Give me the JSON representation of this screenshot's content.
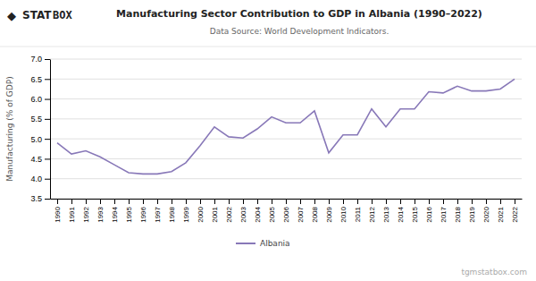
{
  "chart_data": {
    "type": "line",
    "title": "Manufacturing Sector Contribution to GDP in Albania (1990–2022)",
    "subtitle": "Data Source: World Development Indicators.",
    "y_label": "Manufacturing (% of GDP)",
    "annotations": [
      "◆",
      "STAT",
      "BOX",
      "tgmstatbox.com"
    ],
    "x": [
      1990,
      1991,
      1992,
      1993,
      1994,
      1995,
      1996,
      1997,
      1998,
      1999,
      2000,
      2001,
      2002,
      2003,
      2004,
      2005,
      2006,
      2007,
      2008,
      2009,
      2010,
      2011,
      2012,
      2013,
      2014,
      2015,
      2016,
      2017,
      2018,
      2019,
      2020,
      2021,
      2022
    ],
    "series": [
      {
        "name": "Albania",
        "color": "#8878b8",
        "values": [
          4.9,
          4.62,
          4.7,
          4.55,
          4.35,
          4.15,
          4.12,
          4.12,
          4.18,
          4.4,
          4.83,
          5.3,
          5.05,
          5.02,
          5.25,
          5.55,
          5.4,
          5.4,
          5.7,
          4.65,
          5.1,
          5.1,
          5.75,
          5.3,
          5.75,
          5.75,
          6.18,
          6.15,
          6.32,
          6.2,
          6.2,
          6.25,
          6.5
        ]
      }
    ],
    "xlim": [
      1989.5,
      2022.5
    ],
    "xticks": [
      1990,
      1991,
      1992,
      1993,
      1994,
      1995,
      1996,
      1997,
      1998,
      1999,
      2000,
      2001,
      2002,
      2003,
      2004,
      2005,
      2006,
      2007,
      2008,
      2009,
      2010,
      2011,
      2012,
      2013,
      2014,
      2015,
      2016,
      2017,
      2018,
      2019,
      2020,
      2021,
      2022
    ],
    "ylim": [
      3.5,
      7.0
    ],
    "yticks": [
      3.5,
      {
        "value": 4.0,
        "label": "4.0"
      },
      4.5,
      {
        "value": 5.0,
        "label": "5.0"
      },
      5.5,
      {
        "value": 6.0,
        "label": "6.0"
      },
      6.5,
      {
        "value": 7.0,
        "label": "7.0"
      }
    ],
    "grid": true,
    "legend": "bottom"
  }
}
